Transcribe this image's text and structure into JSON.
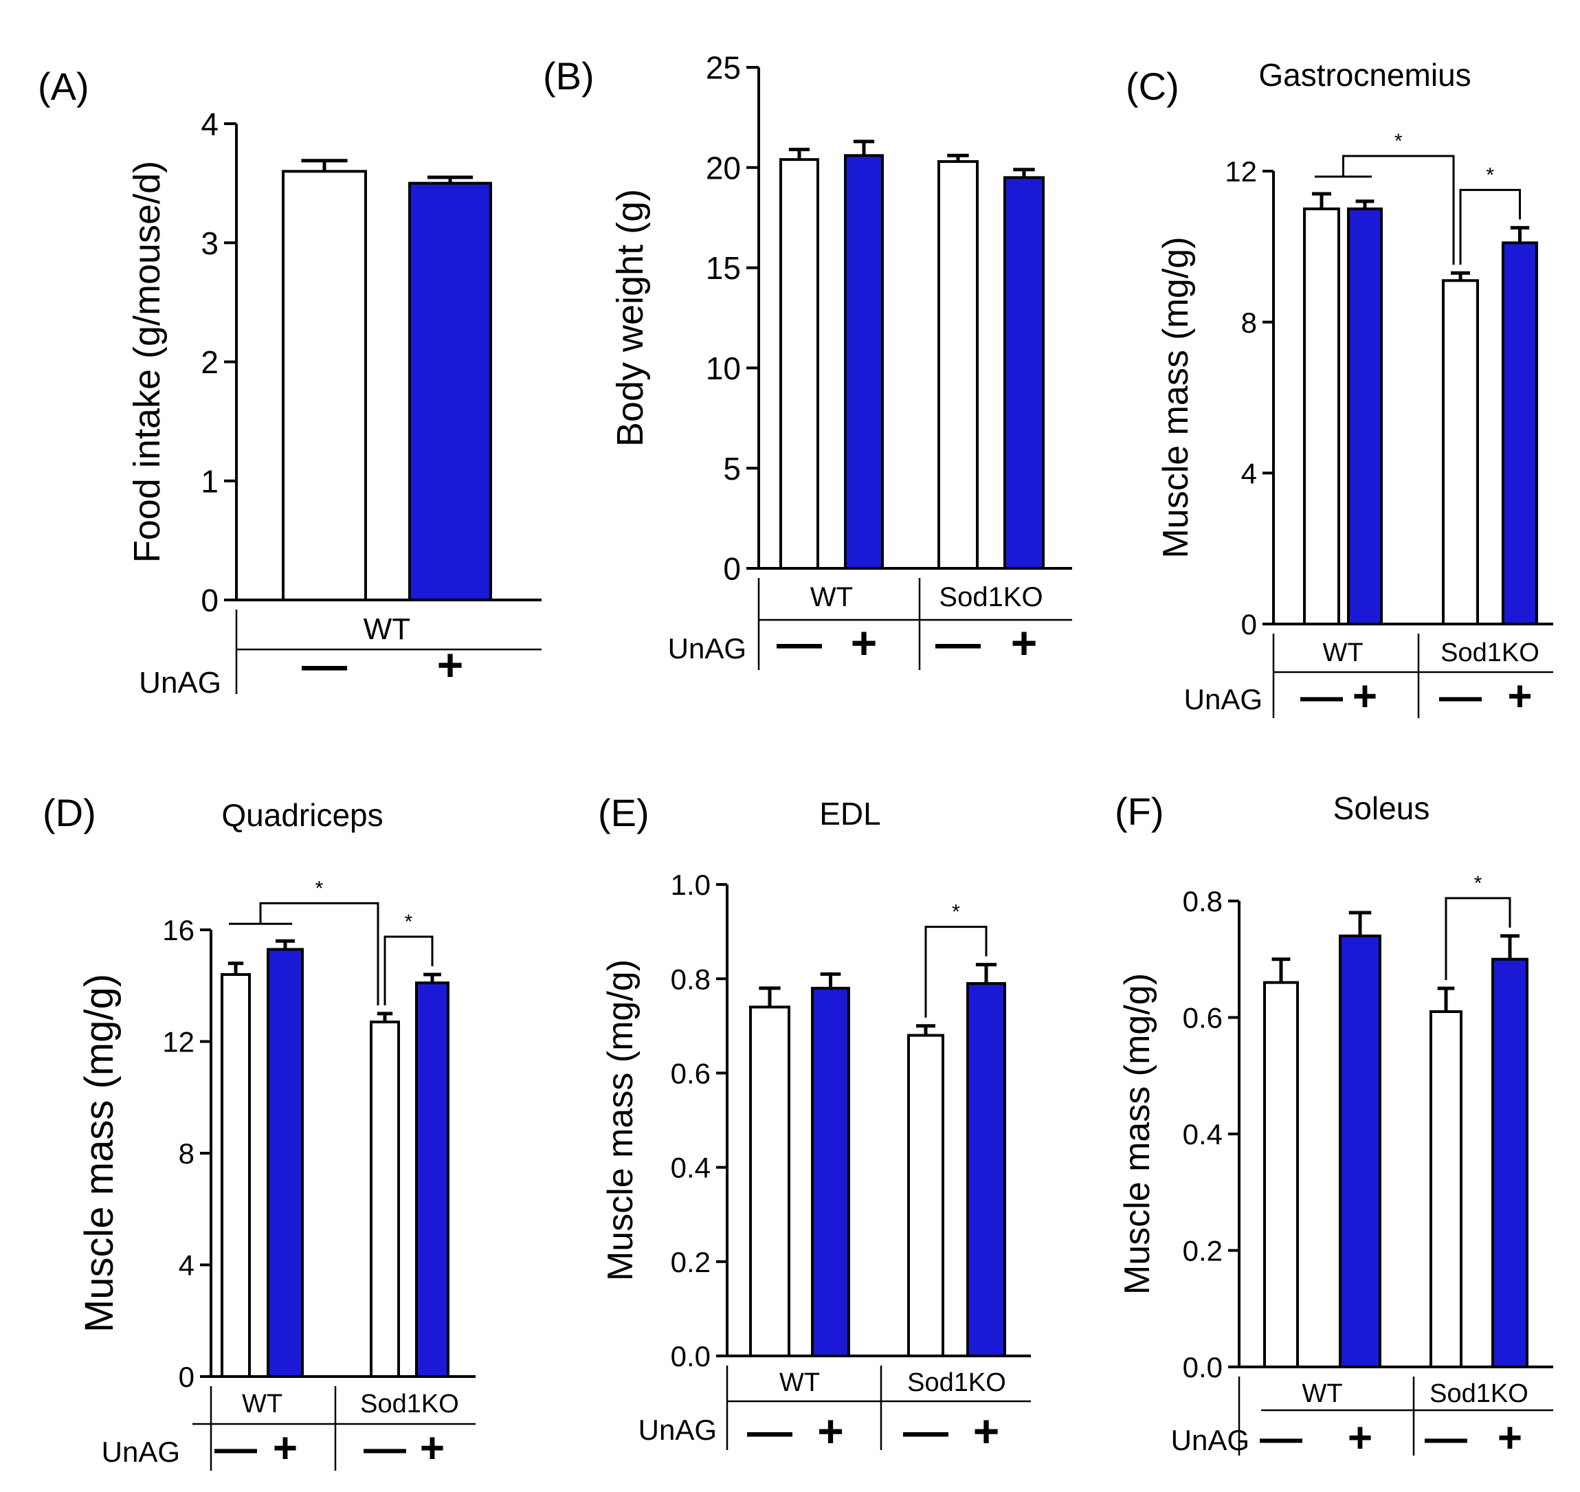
{
  "figure": {
    "group_axis_label": "UnAG",
    "minus_sign": "—",
    "plus_sign": "+",
    "colors": {
      "control_fill": "#ffffff",
      "unag_fill": "#1a1ad6",
      "stroke": "#000000"
    }
  },
  "chart_data": [
    {
      "type": "bar",
      "panel": "(A)",
      "title": "",
      "ylabel": "Food intake (g/mouse/d)",
      "ylim": [
        0,
        4
      ],
      "yticks": [
        0,
        1,
        2,
        3,
        4
      ],
      "groups": [
        "WT"
      ],
      "categories": [
        "WT −UnAG",
        "WT +UnAG"
      ],
      "values": [
        3.6,
        3.5
      ],
      "errors": [
        0.09,
        0.05
      ],
      "significance": []
    },
    {
      "type": "bar",
      "panel": "(B)",
      "title": "",
      "ylabel": "Body weight (g)",
      "ylim": [
        0,
        25
      ],
      "yticks": [
        0,
        5,
        10,
        15,
        20,
        25
      ],
      "groups": [
        "WT",
        "Sod1KO"
      ],
      "categories": [
        "WT −UnAG",
        "WT +UnAG",
        "Sod1KO −UnAG",
        "Sod1KO +UnAG"
      ],
      "values": [
        20.4,
        20.6,
        20.3,
        19.5
      ],
      "errors": [
        0.5,
        0.7,
        0.3,
        0.4
      ],
      "significance": []
    },
    {
      "type": "bar",
      "panel": "(C)",
      "title": "Gastrocnemius",
      "ylabel": "Muscle mass (mg/g)",
      "ylim": [
        0,
        12
      ],
      "yticks": [
        0,
        4,
        8,
        12
      ],
      "groups": [
        "WT",
        "Sod1KO"
      ],
      "categories": [
        "WT −UnAG",
        "WT +UnAG",
        "Sod1KO −UnAG",
        "Sod1KO +UnAG"
      ],
      "values": [
        11.0,
        11.0,
        9.1,
        10.1
      ],
      "errors": [
        0.4,
        0.2,
        0.2,
        0.4
      ],
      "significance": [
        {
          "kind": "group",
          "from": [
            0,
            1
          ],
          "to": 2,
          "label": "*"
        },
        {
          "kind": "pair",
          "from": 2,
          "to": 3,
          "label": "*"
        }
      ]
    },
    {
      "type": "bar",
      "panel": "(D)",
      "title": "Quadriceps",
      "ylabel": "Muscle mass (mg/g)",
      "ylim": [
        0,
        16
      ],
      "yticks": [
        0,
        4,
        8,
        12,
        16
      ],
      "groups": [
        "WT",
        "Sod1KO"
      ],
      "categories": [
        "WT −UnAG",
        "WT +UnAG",
        "Sod1KO −UnAG",
        "Sod1KO +UnAG"
      ],
      "values": [
        14.4,
        15.3,
        12.7,
        14.1
      ],
      "errors": [
        0.4,
        0.3,
        0.3,
        0.3
      ],
      "significance": [
        {
          "kind": "group",
          "from": [
            0,
            1
          ],
          "to": 2,
          "label": "*"
        },
        {
          "kind": "pair",
          "from": 2,
          "to": 3,
          "label": "*"
        }
      ]
    },
    {
      "type": "bar",
      "panel": "(E)",
      "title": "EDL",
      "ylabel": "Muscle mass (mg/g)",
      "ylim": [
        0,
        1.0
      ],
      "yticks": [
        "0.0",
        "0.2",
        "0.4",
        "0.6",
        "0.8",
        "1.0"
      ],
      "groups": [
        "WT",
        "Sod1KO"
      ],
      "categories": [
        "WT −UnAG",
        "WT +UnAG",
        "Sod1KO −UnAG",
        "Sod1KO +UnAG"
      ],
      "values": [
        0.74,
        0.78,
        0.68,
        0.79
      ],
      "errors": [
        0.04,
        0.03,
        0.02,
        0.04
      ],
      "significance": [
        {
          "kind": "pair",
          "from": 2,
          "to": 3,
          "label": "*"
        }
      ]
    },
    {
      "type": "bar",
      "panel": "(F)",
      "title": "Soleus",
      "ylabel": "Muscle mass (mg/g)",
      "ylim": [
        0,
        0.8
      ],
      "yticks": [
        "0.0",
        "0.2",
        "0.4",
        "0.6",
        "0.8"
      ],
      "groups": [
        "WT",
        "Sod1KO"
      ],
      "categories": [
        "WT −UnAG",
        "WT +UnAG",
        "Sod1KO −UnAG",
        "Sod1KO +UnAG"
      ],
      "values": [
        0.66,
        0.74,
        0.61,
        0.7
      ],
      "errors": [
        0.04,
        0.04,
        0.04,
        0.04
      ],
      "significance": [
        {
          "kind": "pair",
          "from": 2,
          "to": 3,
          "label": "*"
        }
      ]
    }
  ]
}
